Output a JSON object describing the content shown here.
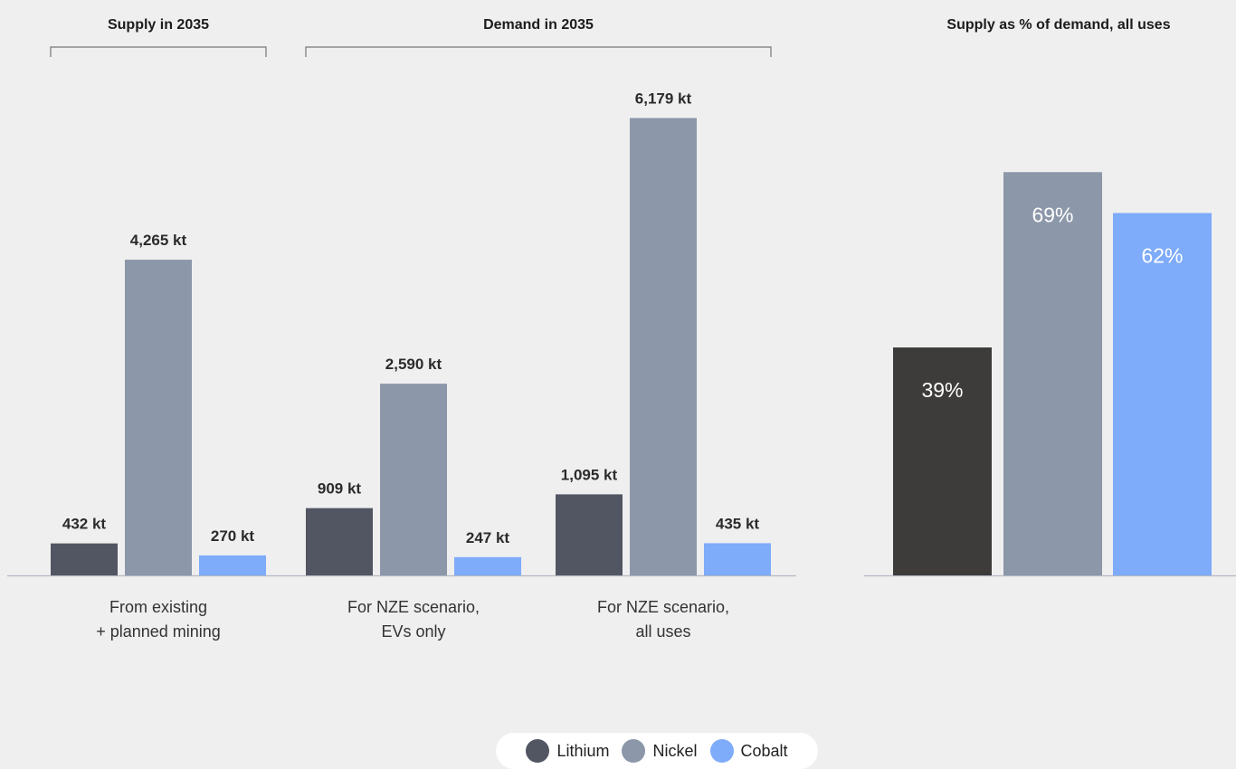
{
  "chart_data": [
    {
      "type": "bar",
      "groups": [
        {
          "heading": "Supply in 2035",
          "categories": [
            {
              "label_line1": "From existing",
              "label_line2": "+ planned mining",
              "values": [
                432,
                4265,
                270
              ],
              "labels": [
                "432 kt",
                "4,265 kt",
                "270 kt"
              ]
            }
          ]
        },
        {
          "heading": "Demand in 2035",
          "categories": [
            {
              "label_line1": "For NZE scenario,",
              "label_line2": "EVs only",
              "values": [
                909,
                2590,
                247
              ],
              "labels": [
                "909 kt",
                "2,590 kt",
                "247 kt"
              ]
            },
            {
              "label_line1": "For NZE scenario,",
              "label_line2": "all uses",
              "values": [
                1095,
                6179,
                435
              ],
              "labels": [
                "1,095 kt",
                "6,179 kt",
                "435 kt"
              ]
            }
          ]
        }
      ],
      "series": [
        {
          "name": "Lithium",
          "color": "#525663"
        },
        {
          "name": "Nickel",
          "color": "#8c97a9"
        },
        {
          "name": "Cobalt",
          "color": "#7eabfa"
        }
      ],
      "unit": "kt",
      "ylim": [
        0,
        6600
      ],
      "grid": false
    },
    {
      "type": "bar",
      "title": "Supply as % of demand, all uses",
      "categories": [
        "Lithium",
        "Nickel",
        "Cobalt"
      ],
      "values": [
        39,
        69,
        62
      ],
      "labels": [
        "39%",
        "69%",
        "62%"
      ],
      "colors": [
        "#3d3c3a",
        "#8c97a9",
        "#7eabfa"
      ],
      "ylim": [
        0,
        100
      ],
      "grid": false
    }
  ],
  "legend": {
    "items": [
      {
        "name": "Lithium",
        "color": "#525663"
      },
      {
        "name": "Nickel",
        "color": "#8c97a9"
      },
      {
        "name": "Cobalt",
        "color": "#7eabfa"
      }
    ],
    "placement": "bottom-center"
  }
}
